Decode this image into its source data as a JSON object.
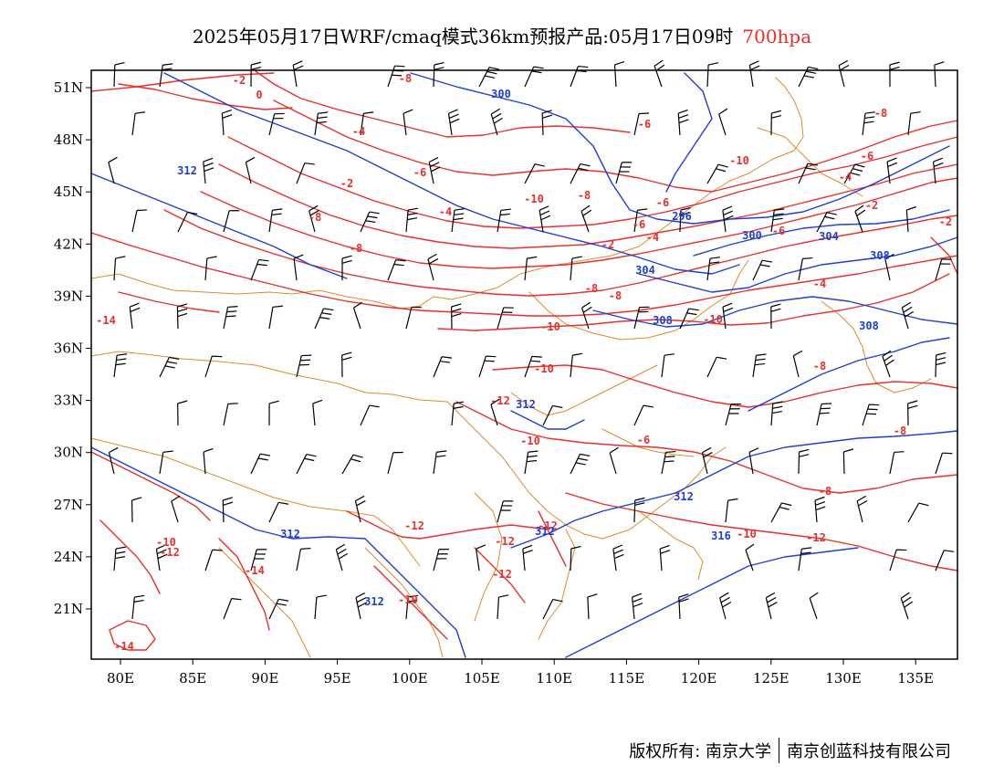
{
  "title": {
    "main": "2025年05月17日WRF/cmaq模式36km预报产品:05月17日09时",
    "level": "700hpa"
  },
  "colors": {
    "temperature": "#e8302c",
    "height": "#1f3fd6",
    "border": "#e08a2a",
    "wind": "#000000"
  },
  "axes": {
    "lon_labels": [
      "80E",
      "85E",
      "90E",
      "95E",
      "100E",
      "105E",
      "110E",
      "115E",
      "120E",
      "125E",
      "130E",
      "135E"
    ],
    "lat_labels": [
      "51N",
      "48N",
      "45N",
      "42N",
      "39N",
      "36N",
      "33N",
      "30N",
      "27N",
      "24N",
      "21N"
    ]
  },
  "contour_labels": {
    "temperature": [
      "-2",
      "0",
      "-8",
      "-4",
      "-6",
      "-2",
      "-6",
      "-10",
      "-8",
      "-4",
      "-6",
      "-10",
      "-8",
      "-6",
      "-2",
      "-4",
      "-8",
      "-8",
      "-6",
      "-4",
      "-2",
      "-2",
      "-4",
      "-6",
      "-8",
      "-8",
      "-14",
      "-10",
      "-10",
      "-10",
      "-12",
      "-10",
      "-6",
      "-8",
      "-8",
      "-8",
      "-10",
      "-12",
      "-14",
      "-14",
      "-12",
      "-12",
      "-12",
      "-10",
      "-12",
      "-10",
      "-12"
    ],
    "height": [
      "300",
      "312",
      "296",
      "300",
      "304",
      "304",
      "308",
      "308",
      "312",
      "308",
      "312",
      "312",
      "312",
      "312",
      "316"
    ]
  },
  "footer": {
    "copyright": "版权所有: 南京大学",
    "company": "南京创蓝科技有限公司"
  }
}
